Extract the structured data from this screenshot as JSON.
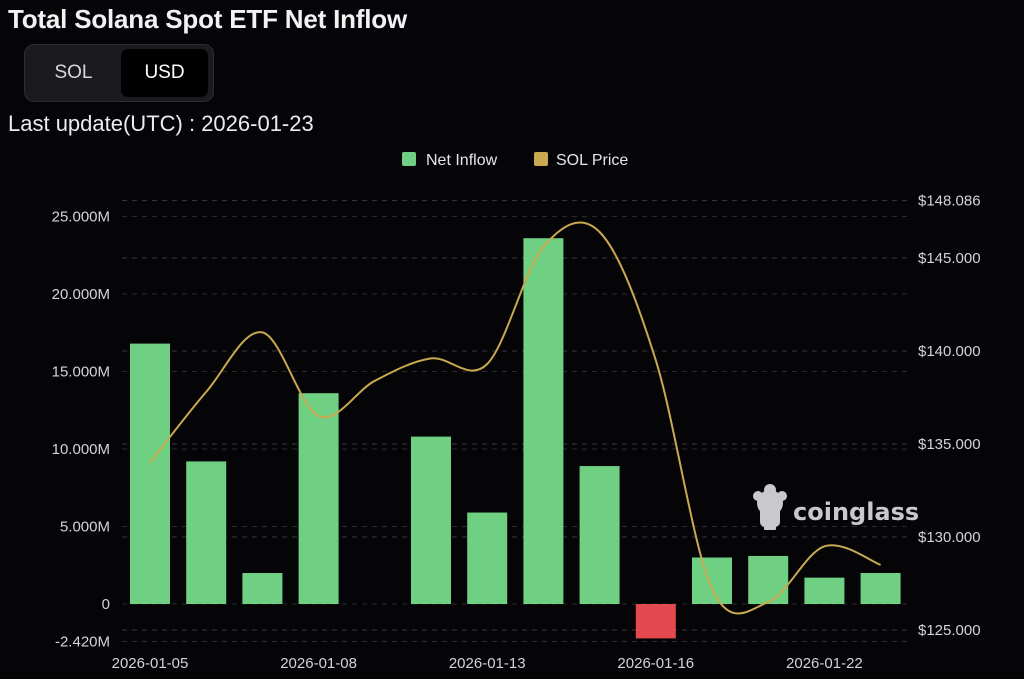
{
  "header": {
    "title": "Total Solana Spot ETF Net Inflow",
    "last_update_label": "Last update(UTC) : 2026-01-23"
  },
  "toggle": {
    "options": [
      {
        "label": "SOL",
        "active": false
      },
      {
        "label": "USD",
        "active": true
      }
    ]
  },
  "watermark": {
    "text": "coinglass",
    "icon": "coinglass-logo-icon"
  },
  "colors": {
    "background": "#050507",
    "net_inflow_positive": "#6fcf82",
    "net_inflow_negative": "#e34a4f",
    "sol_price_line": "#c9a94f",
    "grid": "#3a3a40"
  },
  "chart_data": {
    "type": "bar",
    "title": "Total Solana Spot ETF Net Inflow",
    "legend": {
      "placement": "top-center",
      "entries": [
        {
          "name": "Net Inflow",
          "color": "#6fcf82",
          "marker": "square"
        },
        {
          "name": "SOL Price",
          "color": "#c9a94f",
          "marker": "square"
        }
      ]
    },
    "x_tick_labels": [
      "2026-01-05",
      "2026-01-08",
      "2026-01-13",
      "2026-01-16",
      "2026-01-22"
    ],
    "x_tick_label_indices": [
      0,
      3,
      6,
      9,
      12
    ],
    "categories": [
      "2026-01-05",
      "2026-01-06",
      "2026-01-07",
      "2026-01-08",
      "2026-01-09",
      "2026-01-12",
      "2026-01-13",
      "2026-01-14",
      "2026-01-15",
      "2026-01-16",
      "2026-01-20",
      "2026-01-21",
      "2026-01-22",
      "2026-01-23"
    ],
    "series": [
      {
        "name": "Net Inflow",
        "type": "bar",
        "axis": "left",
        "values": [
          16.8,
          9.2,
          2.0,
          13.6,
          0,
          10.8,
          5.9,
          23.6,
          8.9,
          -2.22,
          3.0,
          3.1,
          1.7,
          2.0
        ]
      },
      {
        "name": "SOL Price",
        "type": "line",
        "axis": "right",
        "values": [
          134.0,
          137.8,
          141.0,
          136.5,
          138.4,
          139.6,
          139.3,
          145.6,
          146.4,
          139.5,
          127.2,
          126.5,
          129.5,
          128.5
        ]
      }
    ],
    "y_left": {
      "unit": "M",
      "ylim": [
        -2.42,
        27.0
      ],
      "tick_values": [
        -2.42,
        0,
        5,
        10,
        15,
        20,
        25
      ],
      "tick_labels": [
        "-2.420M",
        "0",
        "5.000M",
        "10.000M",
        "15.000M",
        "20.000M",
        "25.000M"
      ]
    },
    "y_right": {
      "ylim": [
        125.0,
        148.086
      ],
      "tick_values": [
        125,
        130,
        135,
        140,
        145,
        148.086
      ],
      "tick_labels": [
        "$125.000",
        "$130.000",
        "$135.000",
        "$140.000",
        "$145.000",
        "$148.086"
      ]
    },
    "grid": true
  }
}
